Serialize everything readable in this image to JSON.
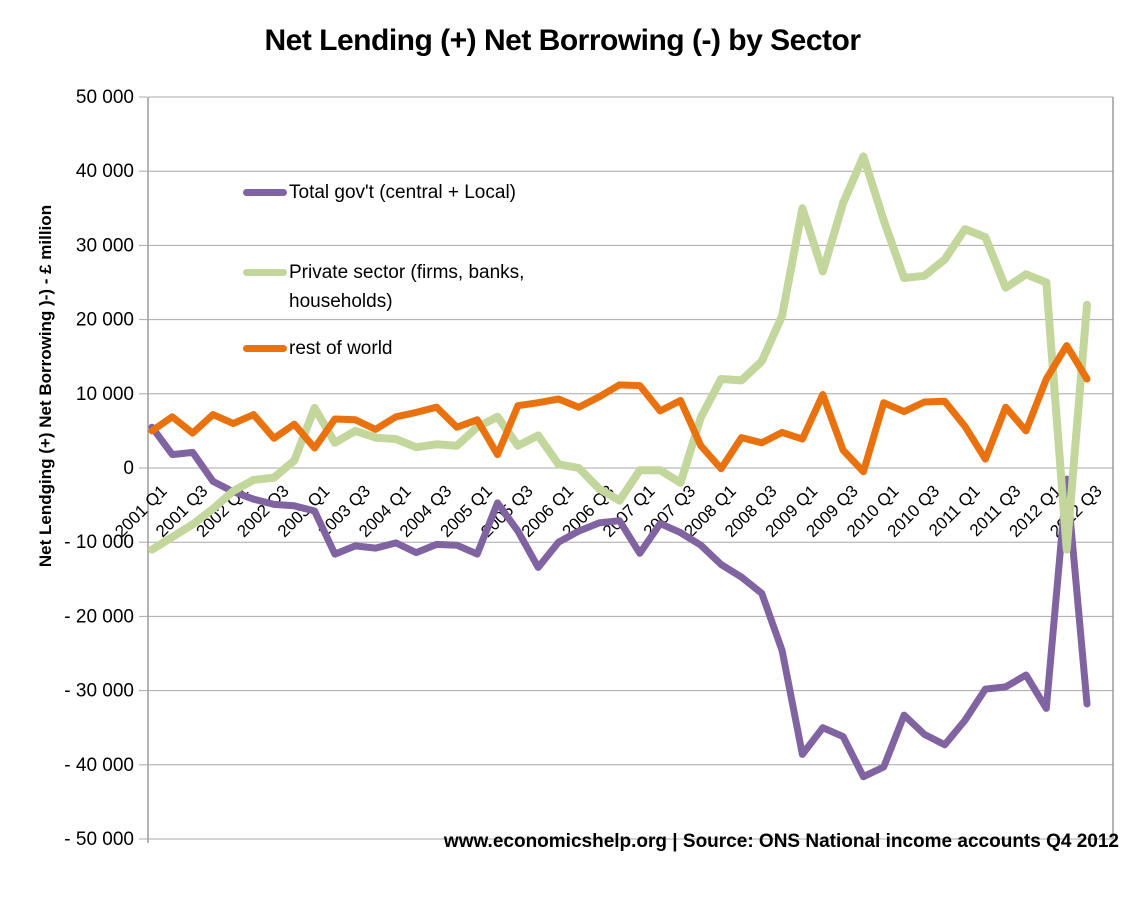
{
  "page": {
    "title": "Net Lending (+) Net Borrowing (-) by Sector",
    "source_note": "www.economicshelp.org | Source: ONS National income accounts Q4 2012"
  },
  "chart_data": {
    "type": "line",
    "title": "Net Lending (+) Net Borrowing (-) by Sector",
    "ylabel": "Net Lendging (+) Net Borrowing )-) - £ million",
    "xlabel": "",
    "unit": "£ million",
    "ylim": [
      -50000,
      50000
    ],
    "grid": "horizontal",
    "legend_position": "inside-top-left",
    "colors": {
      "gridline": "#A8A8A8",
      "axis": "#8C8C8C",
      "gov": "#8064A2",
      "private": "#C3D69B",
      "rest_of_world": "#E9720E"
    },
    "y_ticks": [
      {
        "value": 50000,
        "label": "50 000"
      },
      {
        "value": 40000,
        "label": "40 000"
      },
      {
        "value": 30000,
        "label": "30 000"
      },
      {
        "value": 20000,
        "label": "20 000"
      },
      {
        "value": 10000,
        "label": "10 000"
      },
      {
        "value": 0,
        "label": "0"
      },
      {
        "value": -10000,
        "label": "- 10 000"
      },
      {
        "value": -20000,
        "label": "- 20 000"
      },
      {
        "value": -30000,
        "label": "- 30 000"
      },
      {
        "value": -40000,
        "label": "- 40 000"
      },
      {
        "value": -50000,
        "label": "- 50 000"
      }
    ],
    "categories": [
      "2001 Q1",
      "2001 Q2",
      "2001 Q3",
      "2001 Q4",
      "2002 Q1",
      "2002 Q2",
      "2002 Q3",
      "2002 Q4",
      "2003 Q1",
      "2003 Q2",
      "2003 Q3",
      "2003 Q4",
      "2004 Q1",
      "2004 Q2",
      "2004 Q3",
      "2004 Q4",
      "2005 Q1",
      "2005 Q2",
      "2005 Q3",
      "2005 Q4",
      "2006 Q1",
      "2006 Q2",
      "2006 Q3",
      "2006 Q4",
      "2007 Q1",
      "2007 Q2",
      "2007 Q3",
      "2007 Q4",
      "2008 Q1",
      "2008 Q2",
      "2008 Q3",
      "2008 Q4",
      "2009 Q1",
      "2009 Q2",
      "2009 Q3",
      "2009 Q4",
      "2010 Q1",
      "2010 Q2",
      "2010 Q3",
      "2010 Q4",
      "2011 Q1",
      "2011 Q2",
      "2011 Q3",
      "2011 Q4",
      "2012 Q1",
      "2012 Q2",
      "2012 Q3"
    ],
    "x_tick_labels": [
      "2001 Q1",
      "2001 Q3",
      "2002 Q1",
      "2002 Q3",
      "2003 Q1",
      "2003 Q3",
      "2004 Q1",
      "2004 Q3",
      "2005 Q1",
      "2005 Q3",
      "2006 Q1",
      "2006 Q3",
      "2007 Q1",
      "2007 Q3",
      "2008 Q1",
      "2008 Q3",
      "2009 Q1",
      "2009 Q3",
      "2010 Q1",
      "2010 Q3",
      "2011 Q1",
      "2011 Q3",
      "2012 Q1",
      "2012 Q3"
    ],
    "series": [
      {
        "name": "Total gov't (central + Local)",
        "color": "#8064A2",
        "values": [
          5500,
          1800,
          2100,
          -1800,
          -3200,
          -4200,
          -4900,
          -5100,
          -5800,
          -11600,
          -10500,
          -10800,
          -10100,
          -11400,
          -10300,
          -10400,
          -11600,
          -4700,
          -8500,
          -13400,
          -10000,
          -8500,
          -7400,
          -7100,
          -11500,
          -7500,
          -8700,
          -10400,
          -13000,
          -14700,
          -16900,
          -24600,
          -38600,
          -35000,
          -36200,
          -41600,
          -40300,
          -33300,
          -35900,
          -37300,
          -34000,
          -29800,
          -29500,
          -27900,
          -32400,
          -1500,
          -31800
        ]
      },
      {
        "name": "Private sector (firms, banks, households)",
        "color": "#C3D69B",
        "values": [
          -11000,
          -9300,
          -7600,
          -5500,
          -3100,
          -1600,
          -1300,
          1000,
          8100,
          3400,
          5000,
          4100,
          3900,
          2800,
          3200,
          3000,
          5500,
          6900,
          3000,
          4400,
          500,
          0,
          -2800,
          -4400,
          -300,
          -300,
          -2000,
          6800,
          12000,
          11800,
          14400,
          20500,
          35000,
          26500,
          35700,
          42000,
          33400,
          25600,
          25900,
          28100,
          32200,
          31100,
          24300,
          26100,
          25000,
          -11000,
          22000
        ]
      },
      {
        "name": "rest of world",
        "color": "#E9720E",
        "values": [
          5000,
          6900,
          4700,
          7200,
          6000,
          7200,
          4000,
          5900,
          2700,
          6600,
          6500,
          5200,
          6900,
          7500,
          8200,
          5500,
          6500,
          1800,
          8400,
          8800,
          9300,
          8200,
          9600,
          11200,
          11100,
          7700,
          9100,
          3000,
          -100,
          4100,
          3400,
          4800,
          3900,
          9900,
          2400,
          -500,
          8800,
          7600,
          8900,
          9000,
          5600,
          1200,
          8200,
          5000,
          12000,
          16500,
          12000
        ]
      }
    ],
    "source": "www.economicshelp.org | Source: ONS National income accounts Q4 2012"
  }
}
